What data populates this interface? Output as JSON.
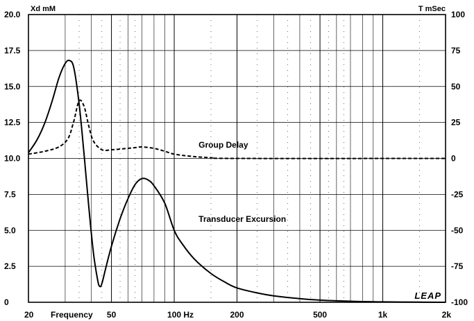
{
  "chart_data": {
    "type": "line",
    "x_scale": "log",
    "xlim": [
      20,
      2000
    ],
    "x_ticks": [
      {
        "value": 20,
        "label": "20"
      },
      {
        "value": 50,
        "label": "50"
      },
      {
        "value": 100,
        "label": "100 Hz"
      },
      {
        "value": 200,
        "label": "200"
      },
      {
        "value": 500,
        "label": "500"
      },
      {
        "value": 1000,
        "label": "1k"
      },
      {
        "value": 2000,
        "label": "2k"
      }
    ],
    "xlabel": "Frequency",
    "y_left": {
      "label": "Xd mM",
      "lim": [
        0,
        20
      ],
      "ticks": [
        {
          "value": 20,
          "label": "20.0"
        },
        {
          "value": 17.5,
          "label": "17.5"
        },
        {
          "value": 15,
          "label": "15.0"
        },
        {
          "value": 12.5,
          "label": "12.5"
        },
        {
          "value": 10,
          "label": "10.0"
        },
        {
          "value": 7.5,
          "label": "7.5"
        },
        {
          "value": 5,
          "label": "5.0"
        },
        {
          "value": 2.5,
          "label": "2.5"
        },
        {
          "value": 0,
          "label": "0"
        }
      ]
    },
    "y_right": {
      "label": "T mSec",
      "lim": [
        -100,
        100
      ],
      "ticks": [
        {
          "value": 100,
          "label": "100"
        },
        {
          "value": 75,
          "label": "75"
        },
        {
          "value": 50,
          "label": "50"
        },
        {
          "value": 25,
          "label": "25"
        },
        {
          "value": 0,
          "label": "0"
        },
        {
          "value": -25,
          "label": "-25"
        },
        {
          "value": -50,
          "label": "-50"
        },
        {
          "value": -75,
          "label": "-75"
        },
        {
          "value": -100,
          "label": "-100"
        }
      ]
    },
    "grid": true,
    "series": [
      {
        "name": "Transducer Excursion",
        "axis": "left",
        "style": "solid",
        "points": [
          [
            20,
            10.4
          ],
          [
            22,
            11.3
          ],
          [
            24,
            12.5
          ],
          [
            26,
            14.0
          ],
          [
            28,
            15.6
          ],
          [
            30,
            16.6
          ],
          [
            31.5,
            16.8
          ],
          [
            33,
            16.3
          ],
          [
            35,
            13.8
          ],
          [
            37,
            10.2
          ],
          [
            39,
            6.5
          ],
          [
            41,
            3.4
          ],
          [
            43,
            1.5
          ],
          [
            44,
            1.1
          ],
          [
            45,
            1.3
          ],
          [
            47,
            2.4
          ],
          [
            50,
            3.9
          ],
          [
            55,
            5.8
          ],
          [
            60,
            7.2
          ],
          [
            65,
            8.2
          ],
          [
            70,
            8.6
          ],
          [
            75,
            8.5
          ],
          [
            80,
            8.1
          ],
          [
            90,
            6.9
          ],
          [
            100,
            5.0
          ],
          [
            110,
            4.0
          ],
          [
            125,
            3.0
          ],
          [
            150,
            2.0
          ],
          [
            175,
            1.4
          ],
          [
            200,
            1.0
          ],
          [
            250,
            0.65
          ],
          [
            300,
            0.45
          ],
          [
            400,
            0.25
          ],
          [
            500,
            0.15
          ],
          [
            700,
            0.07
          ],
          [
            1000,
            0.03
          ],
          [
            1500,
            0.01
          ],
          [
            2000,
            0.0
          ]
        ]
      },
      {
        "name": "Group Delay",
        "axis": "right",
        "style": "dashed",
        "points": [
          [
            20,
            3
          ],
          [
            24,
            5
          ],
          [
            28,
            8
          ],
          [
            31,
            14
          ],
          [
            33,
            26
          ],
          [
            35,
            40
          ],
          [
            37,
            36
          ],
          [
            39,
            22
          ],
          [
            41,
            12
          ],
          [
            45,
            6
          ],
          [
            50,
            6
          ],
          [
            55,
            6.5
          ],
          [
            65,
            7.5
          ],
          [
            70,
            8
          ],
          [
            80,
            7
          ],
          [
            90,
            5
          ],
          [
            100,
            3
          ],
          [
            120,
            1.5
          ],
          [
            150,
            0.5
          ],
          [
            200,
            0
          ],
          [
            2000,
            0
          ]
        ]
      }
    ],
    "annotations": [
      {
        "text": "Group Delay",
        "x": 125,
        "y_left": 10.75
      },
      {
        "text": "Transducer Excursion",
        "x": 125,
        "y_left": 5.6
      }
    ],
    "logo": "LEAP"
  }
}
